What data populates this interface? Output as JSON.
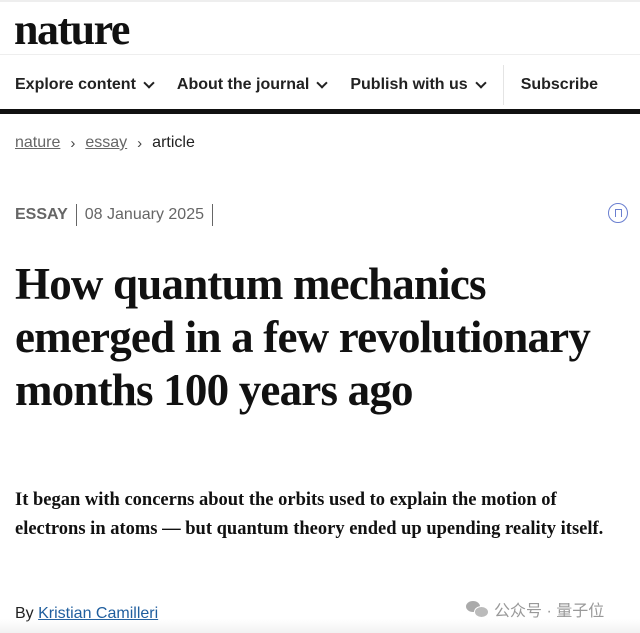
{
  "header": {
    "logo": "nature"
  },
  "nav": {
    "items": [
      {
        "label": "Explore content"
      },
      {
        "label": "About the journal"
      },
      {
        "label": "Publish with us"
      }
    ],
    "subscribe": "Subscribe"
  },
  "breadcrumb": {
    "items": [
      "nature",
      "essay"
    ],
    "current": "article"
  },
  "article": {
    "type": "ESSAY",
    "date": "08 January 2025",
    "title": "How quantum mechanics emerged in a few revolutionary months 100 years ago",
    "standfirst": "It began with concerns about the orbits used to explain the motion of electrons in atoms — but quantum theory ended up upending reality itself.",
    "byline_prefix": "By",
    "author": "Kristian Camilleri"
  },
  "watermark": "公众号 · 量子位",
  "colors": {
    "link": "#1f5e9e",
    "bookmark": "#6a7fd0"
  }
}
